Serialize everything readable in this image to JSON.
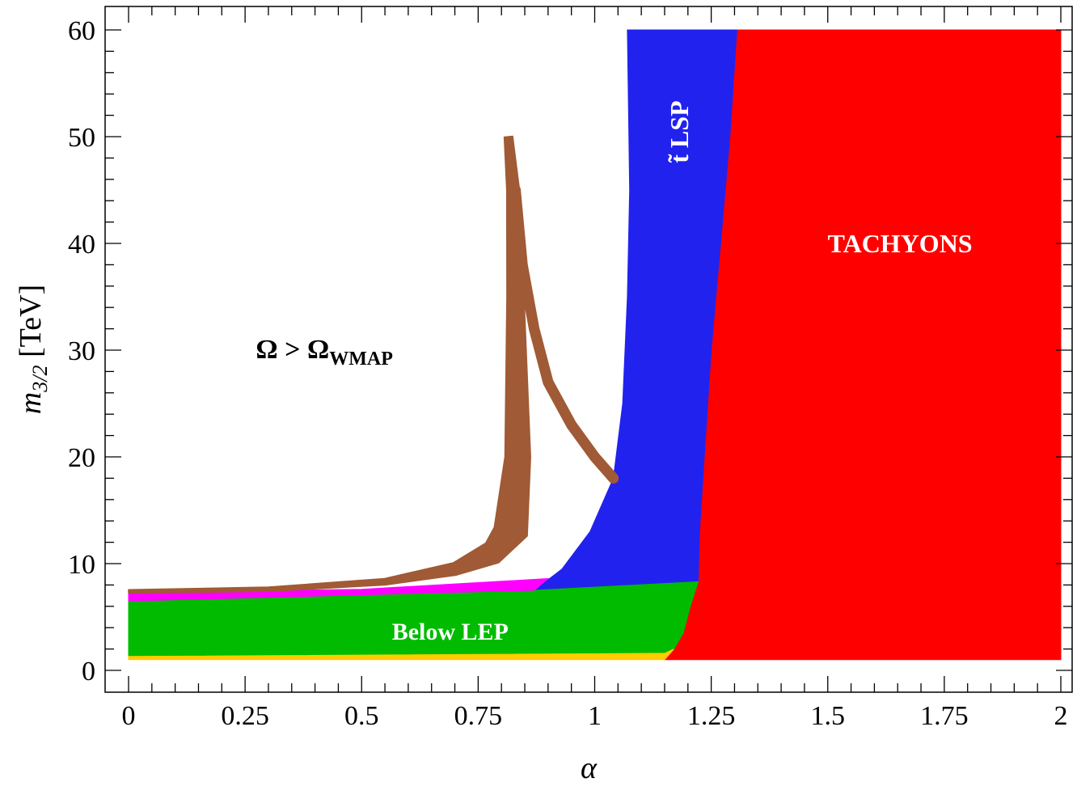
{
  "chart_data": {
    "type": "area",
    "title": "",
    "xlabel": "α",
    "ylabel_main": "m",
    "ylabel_sub": "3/2",
    "ylabel_unit": " [TeV]",
    "xlim": [
      0,
      2
    ],
    "ylim": [
      0,
      60
    ],
    "grid": false,
    "x_ticks": [
      {
        "value": 0,
        "label": "0"
      },
      {
        "value": 0.25,
        "label": "0.25"
      },
      {
        "value": 0.5,
        "label": "0.5"
      },
      {
        "value": 0.75,
        "label": "0.75"
      },
      {
        "value": 1,
        "label": "1"
      },
      {
        "value": 1.25,
        "label": "1.25"
      },
      {
        "value": 1.5,
        "label": "1.5"
      },
      {
        "value": 1.75,
        "label": "1.75"
      },
      {
        "value": 2,
        "label": "2"
      }
    ],
    "y_ticks": [
      {
        "value": 0,
        "label": "0"
      },
      {
        "value": 10,
        "label": "10"
      },
      {
        "value": 20,
        "label": "20"
      },
      {
        "value": 30,
        "label": "30"
      },
      {
        "value": 40,
        "label": "40"
      },
      {
        "value": 50,
        "label": "50"
      },
      {
        "value": 60,
        "label": "60"
      }
    ],
    "regions": [
      {
        "name": "TACHYONS",
        "color": "#ff0000",
        "points": [
          [
            1.15,
            1
          ],
          [
            2,
            1
          ],
          [
            2,
            60
          ],
          [
            1.305,
            60
          ],
          [
            1.29,
            50
          ],
          [
            1.27,
            40
          ],
          [
            1.25,
            30
          ],
          [
            1.235,
            20
          ],
          [
            1.225,
            13
          ],
          [
            1.215,
            9
          ],
          [
            1.205,
            6
          ],
          [
            1.19,
            3.5
          ],
          [
            1.17,
            2
          ]
        ]
      },
      {
        "name": "stop LSP",
        "color": "#2222ee",
        "points": [
          [
            0.87,
            7.5
          ],
          [
            0.93,
            9.5
          ],
          [
            0.99,
            13
          ],
          [
            1.04,
            18
          ],
          [
            1.06,
            25
          ],
          [
            1.07,
            35
          ],
          [
            1.075,
            45
          ],
          [
            1.07,
            60
          ],
          [
            1.305,
            60
          ],
          [
            1.29,
            50
          ],
          [
            1.27,
            40
          ],
          [
            1.25,
            30
          ],
          [
            1.235,
            20
          ],
          [
            1.225,
            13
          ],
          [
            1.222,
            8.3
          ]
        ]
      },
      {
        "name": "Below LEP",
        "color": "#00bb00",
        "points": [
          [
            0,
            1.3
          ],
          [
            1.15,
            1.6
          ],
          [
            1.17,
            2
          ],
          [
            1.19,
            3.5
          ],
          [
            1.205,
            6
          ],
          [
            1.222,
            8.3
          ],
          [
            0.87,
            7.5
          ],
          [
            0,
            6.5
          ]
        ]
      },
      {
        "name": "magenta band",
        "color": "#ff00ff",
        "points": [
          [
            0,
            6.5
          ],
          [
            0.87,
            7.5
          ],
          [
            0.9,
            8.6
          ],
          [
            0.5,
            7.6
          ],
          [
            0,
            7.3
          ]
        ]
      },
      {
        "name": "yellow band",
        "color": "#ffcc00",
        "points": [
          [
            0,
            1
          ],
          [
            1.15,
            1
          ],
          [
            1.17,
            2
          ],
          [
            1.15,
            1.6
          ],
          [
            0,
            1.3
          ]
        ]
      }
    ],
    "relic_band": {
      "name": "WMAP band",
      "color": "#a05a35",
      "center": [
        [
          0,
          7.4
        ],
        [
          0.3,
          7.6
        ],
        [
          0.55,
          8.3
        ],
        [
          0.7,
          9.5
        ],
        [
          0.78,
          11
        ],
        [
          0.82,
          13
        ],
        [
          0.835,
          20
        ],
        [
          0.83,
          35
        ],
        [
          0.825,
          45
        ],
        [
          0.815,
          50
        ]
      ],
      "half_width": [
        0.15,
        0.2,
        0.3,
        0.6,
        1.1,
        1.6,
        1.2,
        0.8,
        0.6,
        0.4
      ],
      "branch": [
        [
          0.83,
          45
        ],
        [
          0.845,
          38
        ],
        [
          0.87,
          32
        ],
        [
          0.9,
          27
        ],
        [
          0.95,
          23
        ],
        [
          1.0,
          20
        ],
        [
          1.04,
          18
        ]
      ],
      "branch_half_width": 0.5
    },
    "annotations": [
      {
        "text_main": "Ω > Ω",
        "text_sub": "WMAP",
        "x": 0.42,
        "y": 30,
        "style": "dark"
      },
      {
        "text": "TACHYONS",
        "x": 1.655,
        "y": 40,
        "style": "light"
      },
      {
        "text": "Below LEP",
        "x": 0.69,
        "y": 3.7,
        "style": "light"
      },
      {
        "text": "t̃ LSP",
        "x": 1.2,
        "y": 50,
        "style": "light-rotated"
      }
    ]
  }
}
